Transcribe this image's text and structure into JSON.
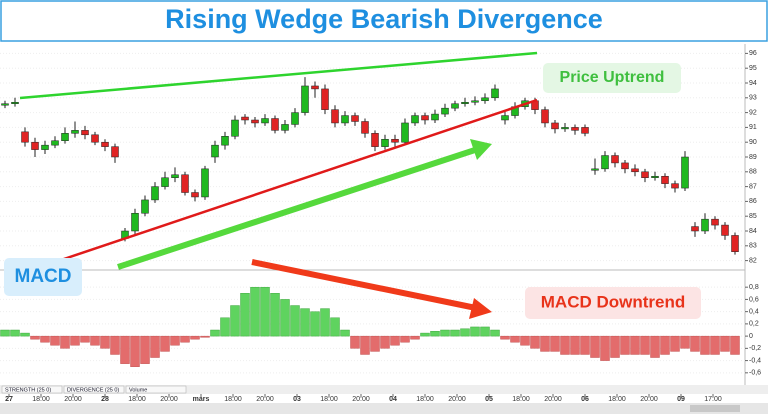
{
  "title": "Rising Wedge Bearish Divergence",
  "annotations": {
    "price": "Price Uptrend",
    "macd": "MACD",
    "macd_trend": "MACD Downtrend"
  },
  "tabs": [
    "STRENGTH (25 0)",
    "DIVERGENCE (25 0)",
    "Volume"
  ],
  "chart_data": [
    {
      "type": "candlestick",
      "up_color": "#1fb81f",
      "down_color": "#e02424",
      "ylim": [
        81.5,
        96.5
      ],
      "yticks": [
        82,
        83,
        84,
        85,
        86,
        87,
        88,
        89,
        90,
        91,
        92,
        93,
        94,
        95,
        96
      ],
      "open": [
        92.5,
        92.6,
        90.7,
        90.0,
        89.5,
        89.8,
        90.1,
        90.6,
        90.8,
        90.5,
        90.0,
        89.7,
        83.5,
        84.0,
        85.2,
        86.1,
        87.0,
        87.6,
        87.8,
        86.6,
        86.3,
        89.0,
        89.8,
        90.4,
        91.7,
        91.5,
        91.3,
        91.6,
        90.8,
        91.2,
        92.0,
        93.8,
        93.6,
        92.2,
        91.3,
        91.8,
        91.4,
        90.6,
        89.7,
        90.2,
        90.0,
        91.3,
        91.8,
        91.5,
        91.9,
        92.3,
        92.6,
        92.7,
        92.8,
        93.0,
        91.5,
        91.8,
        92.4,
        92.8,
        92.2,
        91.3,
        90.9,
        91.0,
        91.0,
        88.1,
        88.2,
        89.1,
        88.6,
        88.2,
        88.0,
        87.6,
        87.7,
        87.2,
        86.9,
        84.3,
        84.0,
        84.8,
        84.4,
        83.7
      ],
      "high": [
        92.8,
        93.0,
        91.0,
        90.3,
        90.1,
        90.4,
        91.0,
        91.4,
        91.1,
        90.7,
        90.2,
        89.9,
        84.2,
        85.5,
        86.4,
        87.3,
        88.0,
        88.3,
        88.0,
        86.8,
        88.4,
        90.1,
        90.7,
        91.8,
        91.9,
        91.7,
        91.9,
        91.8,
        91.5,
        92.3,
        94.4,
        94.1,
        93.9,
        92.5,
        92.1,
        92.0,
        91.6,
        90.8,
        90.5,
        90.5,
        91.6,
        92.0,
        92.0,
        92.2,
        92.6,
        92.8,
        93.0,
        93.1,
        93.3,
        93.9,
        92.1,
        92.7,
        93.0,
        93.0,
        92.4,
        91.5,
        91.3,
        91.2,
        91.2,
        88.9,
        89.4,
        89.3,
        88.8,
        88.5,
        88.2,
        88.0,
        87.9,
        87.4,
        89.4,
        84.6,
        85.2,
        85.0,
        84.6,
        83.9
      ],
      "low": [
        92.3,
        92.4,
        89.7,
        89.0,
        89.2,
        89.6,
        89.9,
        90.3,
        90.2,
        89.8,
        89.4,
        88.6,
        83.3,
        83.8,
        85.0,
        85.9,
        86.8,
        87.3,
        86.4,
        86.0,
        86.1,
        88.6,
        89.5,
        90.2,
        91.2,
        91.0,
        91.1,
        90.6,
        90.6,
        91.0,
        91.8,
        93.0,
        91.9,
        91.0,
        91.1,
        91.1,
        90.3,
        89.4,
        89.5,
        89.7,
        89.8,
        91.1,
        91.2,
        91.3,
        91.7,
        92.1,
        92.4,
        92.5,
        92.6,
        92.8,
        91.2,
        91.6,
        92.2,
        91.9,
        91.0,
        90.6,
        90.7,
        90.5,
        90.4,
        87.8,
        88.0,
        88.3,
        87.9,
        87.7,
        87.3,
        87.4,
        86.9,
        86.6,
        86.7,
        83.6,
        83.8,
        84.1,
        83.4,
        82.4
      ],
      "close": [
        92.6,
        92.7,
        90.0,
        89.5,
        89.8,
        90.1,
        90.6,
        90.8,
        90.5,
        90.0,
        89.7,
        89.0,
        84.0,
        85.2,
        86.1,
        87.0,
        87.6,
        87.8,
        86.6,
        86.3,
        88.2,
        89.8,
        90.4,
        91.5,
        91.5,
        91.3,
        91.6,
        90.8,
        91.2,
        92.0,
        93.8,
        93.6,
        92.2,
        91.3,
        91.8,
        91.4,
        90.6,
        89.7,
        90.2,
        90.0,
        91.3,
        91.8,
        91.5,
        91.9,
        92.3,
        92.6,
        92.7,
        92.8,
        93.0,
        93.6,
        91.8,
        92.4,
        92.8,
        92.2,
        91.3,
        90.9,
        91.0,
        90.8,
        90.6,
        88.2,
        89.1,
        88.6,
        88.2,
        88.0,
        87.6,
        87.7,
        87.2,
        86.9,
        89.0,
        84.0,
        84.8,
        84.4,
        83.7,
        82.6
      ]
    },
    {
      "type": "bar",
      "pos_color": "#5fd35f",
      "neg_color": "#e36c6c",
      "ylim": [
        -0.75,
        0.95
      ],
      "yticks": [
        {
          "value": 0.8,
          "label": "0,8"
        },
        {
          "value": 0.6,
          "label": "0,6"
        },
        {
          "value": 0.4,
          "label": "0,4"
        },
        {
          "value": 0.2,
          "label": "0,2"
        },
        0,
        {
          "value": -0.2,
          "label": "-0,2"
        },
        {
          "value": -0.4,
          "label": "-0,4"
        },
        {
          "value": -0.6,
          "label": "-0,6"
        }
      ],
      "values": [
        0.1,
        0.1,
        0.05,
        -0.05,
        -0.1,
        -0.15,
        -0.2,
        -0.15,
        -0.1,
        -0.15,
        -0.2,
        -0.3,
        -0.45,
        -0.5,
        -0.45,
        -0.35,
        -0.25,
        -0.15,
        -0.1,
        -0.05,
        -0.02,
        0.1,
        0.3,
        0.5,
        0.7,
        0.8,
        0.8,
        0.7,
        0.6,
        0.5,
        0.45,
        0.4,
        0.45,
        0.3,
        0.1,
        -0.2,
        -0.3,
        -0.25,
        -0.2,
        -0.15,
        -0.1,
        -0.05,
        0.05,
        0.08,
        0.1,
        0.1,
        0.12,
        0.15,
        0.15,
        0.1,
        -0.05,
        -0.1,
        -0.15,
        -0.2,
        -0.25,
        -0.25,
        -0.3,
        -0.3,
        -0.3,
        -0.35,
        -0.4,
        -0.35,
        -0.3,
        -0.3,
        -0.3,
        -0.35,
        -0.3,
        -0.25,
        -0.2,
        -0.25,
        -0.3,
        -0.3,
        -0.25,
        -0.3
      ],
      "x_tick_labels": [
        "27",
        "18:00",
        "20:00",
        "28",
        "18:00",
        "20:00",
        "mars",
        "18:00",
        "20:00",
        "03",
        "18:00",
        "20:00",
        "04",
        "18:00",
        "20:00",
        "05",
        "18:00",
        "20:00",
        "06",
        "18:00",
        "20:00",
        "09",
        "17:00"
      ]
    }
  ]
}
